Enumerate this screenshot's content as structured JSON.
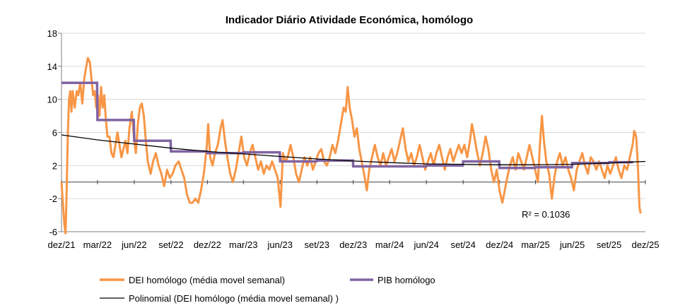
{
  "chart_data": {
    "type": "line",
    "title": "Indicador Diário Atividade Económica, homólogo",
    "xlabel": "",
    "ylabel": "",
    "x_range": [
      "2021-12-01",
      "2025-12-01"
    ],
    "ylim": [
      -6,
      18
    ],
    "y_ticks": [
      "18",
      "14",
      "10",
      "6",
      "2",
      "-2",
      "-6"
    ],
    "y_tick_values": [
      18,
      14,
      10,
      6,
      2,
      -2,
      -6
    ],
    "x_ticks": [
      "dez/21",
      "mar/22",
      "jun/22",
      "set/22",
      "dez/22",
      "mar/23",
      "jun/23",
      "set/23",
      "dez/23",
      "mar/24",
      "jun/24",
      "set/24",
      "dez/24",
      "mar/25",
      "jun/25",
      "set/25",
      "dez/25"
    ],
    "x_tick_dates": [
      "2021-12-01",
      "2022-03-01",
      "2022-06-01",
      "2022-09-01",
      "2022-12-01",
      "2023-03-01",
      "2023-06-01",
      "2023-09-01",
      "2023-12-01",
      "2024-03-01",
      "2024-06-01",
      "2024-09-01",
      "2024-12-01",
      "2025-03-01",
      "2025-06-01",
      "2025-09-01",
      "2025-12-01"
    ],
    "grid": true,
    "legend_position": "bottom",
    "annotation": "R² = 0.1036",
    "series": [
      {
        "name": "DEI homólogo (média movel semanal)",
        "color": "#F79646",
        "points": [
          [
            "2021-12-01",
            0
          ],
          [
            "2021-12-05",
            -3
          ],
          [
            "2021-12-08",
            -5
          ],
          [
            "2021-12-11",
            -6.2
          ],
          [
            "2021-12-14",
            -1
          ],
          [
            "2021-12-17",
            6
          ],
          [
            "2021-12-20",
            10
          ],
          [
            "2021-12-23",
            11
          ],
          [
            "2021-12-26",
            8.5
          ],
          [
            "2021-12-29",
            11
          ],
          [
            "2022-01-03",
            9
          ],
          [
            "2022-01-08",
            11
          ],
          [
            "2022-01-12",
            10.5
          ],
          [
            "2022-01-17",
            12
          ],
          [
            "2022-01-22",
            9.5
          ],
          [
            "2022-01-27",
            12.5
          ],
          [
            "2022-02-01",
            14
          ],
          [
            "2022-02-05",
            15
          ],
          [
            "2022-02-10",
            14.5
          ],
          [
            "2022-02-14",
            12.5
          ],
          [
            "2022-02-18",
            10.5
          ],
          [
            "2022-02-22",
            11
          ],
          [
            "2022-02-26",
            9
          ],
          [
            "2022-03-02",
            10.5
          ],
          [
            "2022-03-06",
            8
          ],
          [
            "2022-03-10",
            11.5
          ],
          [
            "2022-03-14",
            9
          ],
          [
            "2022-03-18",
            10.5
          ],
          [
            "2022-03-22",
            7.5
          ],
          [
            "2022-03-26",
            5.5
          ],
          [
            "2022-03-31",
            5.5
          ],
          [
            "2022-04-05",
            3.5
          ],
          [
            "2022-04-10",
            3
          ],
          [
            "2022-04-15",
            4.5
          ],
          [
            "2022-04-20",
            6
          ],
          [
            "2022-04-25",
            4.5
          ],
          [
            "2022-04-30",
            3
          ],
          [
            "2022-05-05",
            4
          ],
          [
            "2022-05-10",
            5
          ],
          [
            "2022-05-15",
            3.5
          ],
          [
            "2022-05-20",
            6.5
          ],
          [
            "2022-05-26",
            8.5
          ],
          [
            "2022-06-01",
            5
          ],
          [
            "2022-06-05",
            3.5
          ],
          [
            "2022-06-10",
            7
          ],
          [
            "2022-06-15",
            9
          ],
          [
            "2022-06-20",
            9.5
          ],
          [
            "2022-06-25",
            8
          ],
          [
            "2022-06-30",
            5
          ],
          [
            "2022-07-05",
            2.5
          ],
          [
            "2022-07-12",
            1
          ],
          [
            "2022-07-18",
            2.5
          ],
          [
            "2022-07-25",
            3.5
          ],
          [
            "2022-08-01",
            2
          ],
          [
            "2022-08-08",
            1
          ],
          [
            "2022-08-15",
            -0.5
          ],
          [
            "2022-08-22",
            1.5
          ],
          [
            "2022-08-29",
            0.5
          ],
          [
            "2022-09-05",
            1
          ],
          [
            "2022-09-12",
            2
          ],
          [
            "2022-09-20",
            2.5
          ],
          [
            "2022-09-27",
            1.5
          ],
          [
            "2022-10-04",
            0.5
          ],
          [
            "2022-10-11",
            -1.5
          ],
          [
            "2022-10-18",
            -2.5
          ],
          [
            "2022-10-25",
            -2.5
          ],
          [
            "2022-11-01",
            -2
          ],
          [
            "2022-11-08",
            -2.5
          ],
          [
            "2022-11-15",
            -1
          ],
          [
            "2022-11-22",
            1
          ],
          [
            "2022-11-29",
            4
          ],
          [
            "2022-12-03",
            7
          ],
          [
            "2022-12-08",
            3
          ],
          [
            "2022-12-14",
            2
          ],
          [
            "2022-12-20",
            3.5
          ],
          [
            "2022-12-27",
            4.5
          ],
          [
            "2023-01-03",
            6.5
          ],
          [
            "2023-01-08",
            7.5
          ],
          [
            "2023-01-14",
            5
          ],
          [
            "2023-01-20",
            3
          ],
          [
            "2023-01-27",
            1
          ],
          [
            "2023-02-03",
            0
          ],
          [
            "2023-02-10",
            1.5
          ],
          [
            "2023-02-17",
            3.5
          ],
          [
            "2023-02-24",
            5.5
          ],
          [
            "2023-03-03",
            3
          ],
          [
            "2023-03-10",
            2
          ],
          [
            "2023-03-17",
            3.5
          ],
          [
            "2023-03-24",
            4.5
          ],
          [
            "2023-03-31",
            3
          ],
          [
            "2023-04-07",
            1.5
          ],
          [
            "2023-04-14",
            2.5
          ],
          [
            "2023-04-21",
            1
          ],
          [
            "2023-04-28",
            2
          ],
          [
            "2023-05-05",
            1.5
          ],
          [
            "2023-05-12",
            2.5
          ],
          [
            "2023-05-19",
            1.5
          ],
          [
            "2023-05-26",
            0.5
          ],
          [
            "2023-06-02",
            -3
          ],
          [
            "2023-06-08",
            3.5
          ],
          [
            "2023-06-14",
            2.5
          ],
          [
            "2023-06-20",
            3
          ],
          [
            "2023-06-27",
            4.5
          ],
          [
            "2023-07-04",
            3
          ],
          [
            "2023-07-11",
            1
          ],
          [
            "2023-07-18",
            0
          ],
          [
            "2023-07-25",
            1.5
          ],
          [
            "2023-08-01",
            3
          ],
          [
            "2023-08-08",
            2
          ],
          [
            "2023-08-15",
            3
          ],
          [
            "2023-08-22",
            1.5
          ],
          [
            "2023-08-29",
            2.5
          ],
          [
            "2023-09-05",
            3.5
          ],
          [
            "2023-09-12",
            4
          ],
          [
            "2023-09-19",
            2.5
          ],
          [
            "2023-09-26",
            2
          ],
          [
            "2023-10-03",
            3
          ],
          [
            "2023-10-10",
            4.5
          ],
          [
            "2023-10-17",
            3.5
          ],
          [
            "2023-10-24",
            5
          ],
          [
            "2023-10-31",
            7
          ],
          [
            "2023-11-07",
            9
          ],
          [
            "2023-11-12",
            8.5
          ],
          [
            "2023-11-17",
            11.5
          ],
          [
            "2023-11-22",
            9
          ],
          [
            "2023-11-28",
            7.5
          ],
          [
            "2023-12-04",
            5.5
          ],
          [
            "2023-12-10",
            6.5
          ],
          [
            "2023-12-16",
            4
          ],
          [
            "2023-12-22",
            2.5
          ],
          [
            "2023-12-28",
            1
          ],
          [
            "2024-01-04",
            -1
          ],
          [
            "2024-01-10",
            1.5
          ],
          [
            "2024-01-17",
            3
          ],
          [
            "2024-01-24",
            4.5
          ],
          [
            "2024-01-31",
            3
          ],
          [
            "2024-02-07",
            2
          ],
          [
            "2024-02-14",
            3.5
          ],
          [
            "2024-02-21",
            2
          ],
          [
            "2024-02-28",
            3
          ],
          [
            "2024-03-06",
            4
          ],
          [
            "2024-03-13",
            2.5
          ],
          [
            "2024-03-20",
            3.5
          ],
          [
            "2024-03-27",
            5
          ],
          [
            "2024-04-03",
            6.5
          ],
          [
            "2024-04-10",
            4
          ],
          [
            "2024-04-17",
            2.5
          ],
          [
            "2024-04-24",
            3.5
          ],
          [
            "2024-05-01",
            2
          ],
          [
            "2024-05-08",
            3
          ],
          [
            "2024-05-15",
            4.5
          ],
          [
            "2024-05-22",
            3
          ],
          [
            "2024-05-29",
            1.5
          ],
          [
            "2024-06-05",
            2.5
          ],
          [
            "2024-06-12",
            3.5
          ],
          [
            "2024-06-19",
            2
          ],
          [
            "2024-06-26",
            3.5
          ],
          [
            "2024-07-03",
            4.5
          ],
          [
            "2024-07-10",
            3
          ],
          [
            "2024-07-17",
            1.5
          ],
          [
            "2024-07-24",
            3
          ],
          [
            "2024-07-31",
            4
          ],
          [
            "2024-08-07",
            2.5
          ],
          [
            "2024-08-14",
            3.5
          ],
          [
            "2024-08-21",
            4.5
          ],
          [
            "2024-08-28",
            3.5
          ],
          [
            "2024-09-04",
            4.5
          ],
          [
            "2024-09-11",
            3
          ],
          [
            "2024-09-18",
            5
          ],
          [
            "2024-09-23",
            7
          ],
          [
            "2024-09-29",
            5.5
          ],
          [
            "2024-10-06",
            3.5
          ],
          [
            "2024-10-13",
            2
          ],
          [
            "2024-10-20",
            3.5
          ],
          [
            "2024-10-27",
            5.5
          ],
          [
            "2024-11-03",
            4
          ],
          [
            "2024-11-10",
            1.5
          ],
          [
            "2024-11-17",
            0
          ],
          [
            "2024-11-24",
            1.5
          ],
          [
            "2024-12-01",
            -1
          ],
          [
            "2024-12-08",
            -2.5
          ],
          [
            "2024-12-14",
            -1
          ],
          [
            "2024-12-20",
            0.5
          ],
          [
            "2024-12-27",
            2
          ],
          [
            "2025-01-03",
            3
          ],
          [
            "2025-01-10",
            1.5
          ],
          [
            "2025-01-17",
            3.5
          ],
          [
            "2025-01-24",
            2.5
          ],
          [
            "2025-01-31",
            1.5
          ],
          [
            "2025-02-07",
            3
          ],
          [
            "2025-02-14",
            4.5
          ],
          [
            "2025-02-21",
            3
          ],
          [
            "2025-02-28",
            1.5
          ],
          [
            "2025-03-07",
            0
          ],
          [
            "2025-03-12",
            4.5
          ],
          [
            "2025-03-17",
            8
          ],
          [
            "2025-03-22",
            5
          ],
          [
            "2025-03-28",
            2.5
          ],
          [
            "2025-04-04",
            1
          ],
          [
            "2025-04-11",
            -2
          ],
          [
            "2025-04-17",
            0.5
          ],
          [
            "2025-04-24",
            2.5
          ],
          [
            "2025-05-01",
            3.5
          ],
          [
            "2025-05-08",
            2
          ],
          [
            "2025-05-15",
            3
          ],
          [
            "2025-05-22",
            1.5
          ],
          [
            "2025-05-29",
            0.5
          ],
          [
            "2025-06-05",
            -1
          ],
          [
            "2025-06-12",
            1.5
          ],
          [
            "2025-06-19",
            2.5
          ],
          [
            "2025-06-26",
            3.5
          ],
          [
            "2025-07-03",
            2
          ],
          [
            "2025-07-10",
            1
          ],
          [
            "2025-07-17",
            3
          ],
          [
            "2025-07-24",
            2.5
          ],
          [
            "2025-07-31",
            1.5
          ],
          [
            "2025-08-07",
            2.5
          ],
          [
            "2025-08-14",
            1.5
          ],
          [
            "2025-08-21",
            0.5
          ],
          [
            "2025-08-28",
            2
          ],
          [
            "2025-09-04",
            1
          ],
          [
            "2025-09-11",
            2
          ],
          [
            "2025-09-18",
            3
          ],
          [
            "2025-09-25",
            1.5
          ],
          [
            "2025-10-02",
            0.5
          ],
          [
            "2025-10-09",
            2
          ],
          [
            "2025-10-16",
            1.5
          ],
          [
            "2025-10-23",
            3
          ],
          [
            "2025-10-30",
            4.5
          ],
          [
            "2025-11-03",
            6.2
          ],
          [
            "2025-11-08",
            5.5
          ],
          [
            "2025-11-12",
            2
          ],
          [
            "2025-11-16",
            -3
          ],
          [
            "2025-11-19",
            -3.8
          ]
        ]
      },
      {
        "name": "PIB homólogo",
        "color": "#8064A2",
        "steps": [
          [
            "2021-12-01",
            "2022-02-28",
            12.0
          ],
          [
            "2022-03-01",
            "2022-05-31",
            7.5
          ],
          [
            "2022-06-01",
            "2022-08-31",
            5.0
          ],
          [
            "2022-09-01",
            "2022-11-30",
            3.7
          ],
          [
            "2022-12-01",
            "2023-02-28",
            3.5
          ],
          [
            "2023-03-01",
            "2023-05-31",
            3.6
          ],
          [
            "2023-06-01",
            "2023-08-31",
            2.5
          ],
          [
            "2023-09-01",
            "2023-11-30",
            2.6
          ],
          [
            "2023-12-01",
            "2024-02-29",
            1.9
          ],
          [
            "2024-03-01",
            "2024-05-31",
            1.9
          ],
          [
            "2024-06-01",
            "2024-08-31",
            2.0
          ],
          [
            "2024-09-01",
            "2024-11-30",
            2.5
          ],
          [
            "2024-12-01",
            "2025-02-28",
            1.7
          ],
          [
            "2025-03-01",
            "2025-05-31",
            1.8
          ],
          [
            "2025-06-01",
            "2025-08-31",
            2.3
          ],
          [
            "2025-09-01",
            "2025-10-31",
            2.4
          ]
        ]
      },
      {
        "name": "Polinomial (DEI homólogo (média movel semanal) )",
        "color": "#000000",
        "points": [
          [
            "2021-12-01",
            5.7
          ],
          [
            "2022-03-01",
            5.1
          ],
          [
            "2022-06-01",
            4.6
          ],
          [
            "2022-09-01",
            4.1
          ],
          [
            "2022-12-01",
            3.7
          ],
          [
            "2023-03-01",
            3.4
          ],
          [
            "2023-06-01",
            3.1
          ],
          [
            "2023-09-01",
            2.8
          ],
          [
            "2023-12-01",
            2.55
          ],
          [
            "2024-03-01",
            2.35
          ],
          [
            "2024-06-01",
            2.2
          ],
          [
            "2024-09-01",
            2.15
          ],
          [
            "2024-12-01",
            2.1
          ],
          [
            "2025-03-01",
            2.1
          ],
          [
            "2025-06-01",
            2.15
          ],
          [
            "2025-09-01",
            2.3
          ],
          [
            "2025-12-01",
            2.5
          ]
        ]
      }
    ]
  }
}
